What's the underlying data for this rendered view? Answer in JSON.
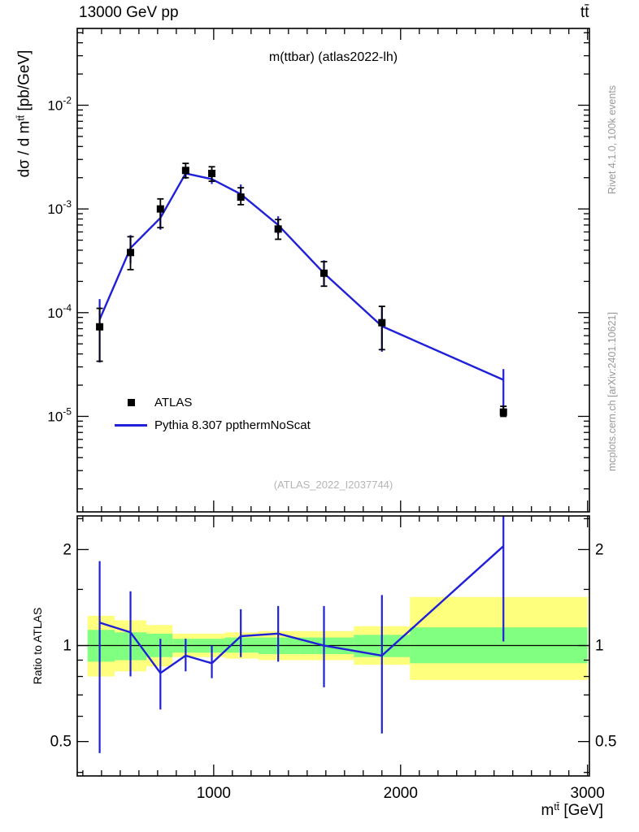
{
  "header": {
    "left_title": "13000 GeV pp",
    "right_title": "tt̄"
  },
  "plot": {
    "inner_title": "m(ttbar) (atlas2022-lh)",
    "watermark": "(ATLAS_2022_I2037744)",
    "ylabel": {
      "prefix": "dσ / d m",
      "sup": "tt̄",
      "suffix": " [pb/GeV]"
    },
    "xlabel": {
      "prefix": "m",
      "sup": "tt̄",
      "suffix": " [GeV]"
    },
    "ratio_ylabel": "Ratio to ATLAS",
    "right_label_top": "Rivet 4.1.0,  100k events",
    "right_label_bottom": "mcplots.cern.ch [arXiv:2401.10621]"
  },
  "legend": [
    {
      "marker": "square",
      "color": "#000000",
      "label": "ATLAS"
    },
    {
      "marker": "line",
      "color": "#2020d8",
      "label": "Pythia 8.307 ppthermNoScat"
    }
  ],
  "colors": {
    "model": "#2020d8",
    "data": "#000000",
    "band_outer": "#feff7d",
    "band_inner": "#80ff80",
    "watermark": "#b5b5b5",
    "side_text": "#999999"
  },
  "chart_data": {
    "type": "line",
    "title": "m(ttbar) (atlas2022-lh)",
    "xlabel": "m^tt [GeV]",
    "ylabel": "dsigma / d m^tt [pb/GeV]",
    "ratio_ylabel": "Ratio to ATLAS",
    "legend_position": "left-middle",
    "x_axis": {
      "scale": "linear",
      "min": 270,
      "max": 3010,
      "major_ticks": [
        1000,
        2000,
        3000
      ],
      "minor_step": 100
    },
    "y_axis_main": {
      "scale": "log",
      "min": 1.2e-06,
      "max": 0.055,
      "major_ticks": [
        0.01,
        0.001,
        0.0001,
        1e-05
      ]
    },
    "y_axis_ratio": {
      "scale": "log",
      "min": 0.39,
      "max": 2.55,
      "major_ticks": [
        0.5,
        1,
        2
      ],
      "minor_ticks": [
        0.4,
        0.6,
        0.7,
        0.8,
        0.9,
        1.5,
        2.5
      ]
    },
    "x": [
      390,
      555,
      715,
      850,
      990,
      1145,
      1345,
      1590,
      1900,
      2550
    ],
    "data": {
      "name": "ATLAS",
      "y": [
        7.3e-05,
        0.00038,
        0.001,
        0.00235,
        0.0022,
        0.0013,
        0.00064,
        0.00024,
        8e-05,
        1.1e-05
      ],
      "y_lo": [
        3.4e-05,
        0.00026,
        0.00066,
        0.002,
        0.00185,
        0.0011,
        0.00051,
        0.00018,
        4.4e-05,
        1e-05
      ],
      "y_hi": [
        0.00011,
        0.00054,
        0.00125,
        0.00275,
        0.00255,
        0.0016,
        0.00079,
        0.00031,
        0.000115,
        1.25e-05
      ]
    },
    "model": {
      "name": "Pythia 8.307 ppthermNoScat",
      "y": [
        8.6e-05,
        0.00042,
        0.00082,
        0.0022,
        0.00194,
        0.00139,
        0.0007,
        0.00024,
        7.4e-05,
        2.25e-05
      ],
      "y_lo": [
        3.3e-05,
        0.0003,
        0.00063,
        0.00195,
        0.00174,
        0.0012,
        0.00057,
        0.00018,
        4.2e-05,
        1.13e-05
      ],
      "y_hi": [
        0.000135,
        0.00056,
        0.00105,
        0.00247,
        0.00218,
        0.00172,
        0.00085,
        0.00032,
        0.000115,
        2.86e-05
      ]
    },
    "ratio": {
      "y": [
        1.18,
        1.1,
        0.82,
        0.93,
        0.88,
        1.07,
        1.09,
        1.0,
        0.93,
        2.05
      ],
      "y_lo": [
        0.46,
        0.8,
        0.63,
        0.83,
        0.79,
        0.92,
        0.89,
        0.74,
        0.53,
        1.03
      ],
      "y_hi": [
        1.84,
        1.48,
        1.05,
        1.05,
        1.0,
        1.3,
        1.33,
        1.33,
        1.44,
        2.6
      ]
    },
    "bands": {
      "edges": [
        325,
        470,
        640,
        780,
        920,
        1060,
        1240,
        1460,
        1750,
        2050,
        3000
      ],
      "outer_lo": [
        0.8,
        0.83,
        0.86,
        0.92,
        0.92,
        0.91,
        0.9,
        0.9,
        0.87,
        0.78
      ],
      "outer_hi": [
        1.24,
        1.2,
        1.16,
        1.09,
        1.09,
        1.1,
        1.11,
        1.11,
        1.15,
        1.42
      ],
      "inner_lo": [
        0.89,
        0.9,
        0.92,
        0.95,
        0.95,
        0.95,
        0.94,
        0.94,
        0.92,
        0.88
      ],
      "inner_hi": [
        1.12,
        1.1,
        1.09,
        1.05,
        1.05,
        1.06,
        1.06,
        1.06,
        1.08,
        1.14
      ]
    }
  }
}
